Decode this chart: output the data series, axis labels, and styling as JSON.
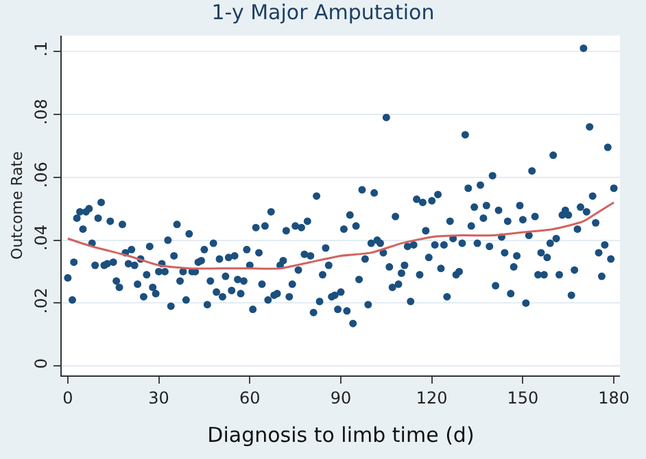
{
  "chart_data": {
    "type": "scatter",
    "title": "1-y Major Amputation",
    "xlabel": "Diagnosis to limb time (d)",
    "ylabel": "Outcome Rate",
    "grid": "y",
    "xlim": [
      -2,
      182
    ],
    "ylim": [
      -0.003,
      0.105
    ],
    "xticks": [
      0,
      30,
      60,
      90,
      120,
      150,
      180
    ],
    "yticks": [
      0,
      {
        "value": 0.02,
        "label": ".02"
      },
      {
        "value": 0.04,
        "label": ".04"
      },
      {
        "value": 0.06,
        "label": ".06"
      },
      {
        "value": 0.08,
        "label": ".08"
      },
      {
        "value": 0.1,
        "label": ".1"
      }
    ],
    "series": [
      {
        "marker": "circle",
        "color": "#1b4f7e",
        "x": [
          0,
          1.5,
          2,
          3,
          4,
          5,
          6,
          7,
          8,
          9,
          10,
          11,
          12,
          13,
          14,
          15,
          16,
          17,
          18,
          19,
          20,
          21,
          22,
          23,
          24,
          25,
          26,
          27,
          28,
          29,
          30,
          31,
          32,
          33,
          34,
          35,
          36,
          37,
          38,
          39,
          40,
          41,
          42,
          43,
          44,
          45,
          46,
          47,
          48,
          49,
          50,
          51,
          52,
          53,
          54,
          55,
          56,
          57,
          58,
          59,
          60,
          61,
          62,
          63,
          64,
          65,
          66,
          67,
          68,
          69,
          70,
          71,
          72,
          73,
          74,
          75,
          76,
          77,
          78,
          79,
          80,
          81,
          82,
          83,
          84,
          85,
          86,
          87,
          88,
          89,
          90,
          91,
          92,
          93,
          94,
          95,
          96,
          97,
          98,
          99,
          100,
          101,
          102,
          103,
          104,
          105,
          106,
          107,
          108,
          109,
          110,
          111,
          112,
          113,
          114,
          115,
          116,
          117,
          118,
          119,
          120,
          121,
          122,
          123,
          124,
          125,
          126,
          127,
          128,
          129,
          130,
          131,
          132,
          133,
          134,
          135,
          136,
          137,
          138,
          139,
          140,
          141,
          142,
          143,
          144,
          145,
          146,
          147,
          148,
          149,
          150,
          151,
          152,
          153,
          154,
          155,
          156,
          157,
          158,
          159,
          160,
          161,
          162,
          163,
          164,
          165,
          166,
          167,
          168,
          169,
          170,
          171,
          172,
          173,
          174,
          175,
          176,
          177,
          178,
          179,
          180
        ],
        "values": [
          0.028,
          0.021,
          0.033,
          0.047,
          0.049,
          0.0435,
          0.049,
          0.05,
          0.039,
          0.032,
          0.047,
          0.052,
          0.032,
          0.0325,
          0.046,
          0.033,
          0.027,
          0.025,
          0.045,
          0.036,
          0.0325,
          0.037,
          0.032,
          0.026,
          0.034,
          0.022,
          0.029,
          0.038,
          0.025,
          0.023,
          0.03,
          0.0325,
          0.03,
          0.04,
          0.019,
          0.035,
          0.045,
          0.027,
          0.03,
          0.021,
          0.042,
          0.03,
          0.03,
          0.033,
          0.0335,
          0.037,
          0.0195,
          0.027,
          0.039,
          0.0235,
          0.034,
          0.022,
          0.0285,
          0.0345,
          0.024,
          0.035,
          0.0275,
          0.023,
          0.027,
          0.037,
          0.032,
          0.018,
          0.044,
          0.036,
          0.026,
          0.0445,
          0.021,
          0.049,
          0.0225,
          0.023,
          0.032,
          0.0335,
          0.043,
          0.022,
          0.026,
          0.0445,
          0.0305,
          0.044,
          0.0355,
          0.046,
          0.035,
          0.017,
          0.054,
          0.0205,
          0.029,
          0.0375,
          0.032,
          0.022,
          0.0225,
          0.018,
          0.0235,
          0.0435,
          0.0175,
          0.048,
          0.0135,
          0.0445,
          0.0275,
          0.056,
          0.034,
          0.0195,
          0.039,
          0.055,
          0.04,
          0.039,
          0.036,
          0.079,
          0.0315,
          0.025,
          0.0475,
          0.026,
          0.0295,
          0.032,
          0.038,
          0.0205,
          0.0385,
          0.053,
          0.029,
          0.052,
          0.043,
          0.0345,
          0.0525,
          0.0385,
          0.0545,
          0.031,
          0.0385,
          0.022,
          0.046,
          0.0405,
          0.029,
          0.03,
          0.039,
          0.0735,
          0.0565,
          0.0445,
          0.0505,
          0.039,
          0.0575,
          0.047,
          0.051,
          0.038,
          0.0605,
          0.0255,
          0.0495,
          0.041,
          0.036,
          0.046,
          0.023,
          0.0315,
          0.035,
          0.051,
          0.0465,
          0.02,
          0.0415,
          0.062,
          0.0475,
          0.029,
          0.036,
          0.029,
          0.0345,
          0.039,
          0.067,
          0.0405,
          0.029,
          0.048,
          0.0495,
          0.048,
          0.0225,
          0.0305,
          0.0435,
          0.0505,
          0.101,
          0.049,
          0.076,
          0.054,
          0.0455,
          0.036,
          0.0285,
          0.0385,
          0.0695,
          0.034,
          0.0565
        ]
      },
      {
        "type": "line",
        "marker": "none",
        "color": "#d2625f",
        "x": [
          0,
          8,
          20,
          30,
          40,
          50,
          60,
          70,
          80,
          90,
          100,
          110,
          120,
          130,
          140,
          150,
          160,
          170,
          175,
          180
        ],
        "values": [
          0.0405,
          0.038,
          0.035,
          0.032,
          0.031,
          0.031,
          0.031,
          0.031,
          0.033,
          0.035,
          0.036,
          0.039,
          0.041,
          0.0415,
          0.0415,
          0.0425,
          0.0435,
          0.046,
          0.049,
          0.052
        ]
      }
    ]
  }
}
